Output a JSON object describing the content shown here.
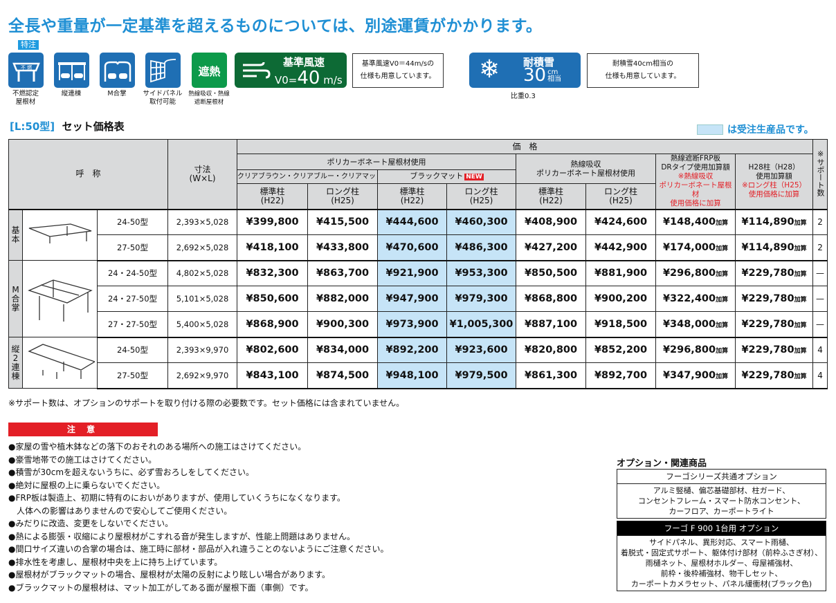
{
  "headline": "全長や重量が一定基準を超えるものについては、別途運賃がかかります。",
  "special_tag": "特注",
  "features": [
    {
      "icon": "nonflammable-roof-icon",
      "label1": "不燃認定",
      "label2": "屋根材",
      "icon_text": "不 燃"
    },
    {
      "icon": "tandem-carport-icon",
      "label1": "縦連棟",
      "label2": ""
    },
    {
      "icon": "m-gassho-icon",
      "label1": "M合掌",
      "label2": ""
    },
    {
      "icon": "side-panel-icon",
      "label1": "サイドパネル",
      "label2": "取付可能"
    },
    {
      "icon": "heat-shield-icon",
      "label1": "熱線吸収・熱線",
      "label2": "遮断屋根材",
      "icon_text": "遮熱"
    }
  ],
  "wind": {
    "title": "基準風速",
    "value": "V0=",
    "number": "40",
    "unit": "m/s"
  },
  "wind_note": [
    "基準風速V0＝44m/sの",
    "仕様も用意しています。"
  ],
  "snow": {
    "title": "耐積雪",
    "number": "30",
    "unit": "cm",
    "unit2": "相当",
    "caption": "比重0.3"
  },
  "snow_note": [
    "耐積雪40cm相当の",
    "仕様も用意しています。"
  ],
  "colors": {
    "accent": "#1f8fd4",
    "blue_badge": "#1f6fb4",
    "green_badge": "#0d6a35",
    "red": "#e31f26",
    "made_to_order": "#c6e4f7"
  },
  "section": {
    "prefix": "[L:50型]",
    "title": "セット価格表"
  },
  "legend": "は受注生産品です。",
  "table": {
    "h_name": "呼　称",
    "h_dim": "寸法\n(W×L)",
    "h_price": "価　格",
    "h_poly": "ポリカーボネート屋根材使用",
    "h_clear": "クリアブラウン・クリアブルー・クリアマット",
    "h_black": "ブラックマット",
    "new": "NEW",
    "h_heat": "熱線吸収\nポリカーボネート屋根材使用",
    "h_frp": "熱線遮断FRP板\nDRタイプ使用加算額",
    "h_frp_red": "※熱線吸収\nポリカーボネート屋根材\n使用価格に加算",
    "h_h28": "H28柱（H28）\n使用加算額",
    "h_h28_red": "※ロング柱（H25）\n使用価格に加算",
    "h_support": "※サポート数",
    "h_std": "標準柱\n(H22)",
    "h_long": "ロング柱\n(H25)",
    "kasan": "加算",
    "groups": [
      {
        "name": "基本",
        "rows": [
          {
            "model": "24-50型",
            "dim": "2,393×5,028",
            "p": [
              "¥399,800",
              "¥415,500",
              "¥444,600",
              "¥460,300",
              "¥408,900",
              "¥424,600",
              "¥148,400",
              "¥114,890"
            ],
            "support": "2"
          },
          {
            "model": "27-50型",
            "dim": "2,692×5,028",
            "p": [
              "¥418,100",
              "¥433,800",
              "¥470,600",
              "¥486,300",
              "¥427,200",
              "¥442,900",
              "¥174,000",
              "¥114,890"
            ],
            "support": "2"
          }
        ]
      },
      {
        "name": "M合掌",
        "rows": [
          {
            "model": "24・24-50型",
            "dim": "4,802×5,028",
            "p": [
              "¥832,300",
              "¥863,700",
              "¥921,900",
              "¥953,300",
              "¥850,500",
              "¥881,900",
              "¥296,800",
              "¥229,780"
            ],
            "support": "—"
          },
          {
            "model": "24・27-50型",
            "dim": "5,101×5,028",
            "p": [
              "¥850,600",
              "¥882,000",
              "¥947,900",
              "¥979,300",
              "¥868,800",
              "¥900,200",
              "¥322,400",
              "¥229,780"
            ],
            "support": "—"
          },
          {
            "model": "27・27-50型",
            "dim": "5,400×5,028",
            "p": [
              "¥868,900",
              "¥900,300",
              "¥973,900",
              "¥1,005,300",
              "¥887,100",
              "¥918,500",
              "¥348,000",
              "¥229,780"
            ],
            "support": "—"
          }
        ]
      },
      {
        "name": "縦2連棟",
        "rows": [
          {
            "model": "24-50型",
            "dim": "2,393×9,970",
            "p": [
              "¥802,600",
              "¥834,000",
              "¥892,200",
              "¥923,600",
              "¥820,800",
              "¥852,200",
              "¥296,800",
              "¥229,780"
            ],
            "support": "4"
          },
          {
            "model": "27-50型",
            "dim": "2,692×9,970",
            "p": [
              "¥843,100",
              "¥874,500",
              "¥948,100",
              "¥979,500",
              "¥861,300",
              "¥892,700",
              "¥347,900",
              "¥229,780"
            ],
            "support": "4"
          }
        ]
      }
    ]
  },
  "footnote": "※サポート数は、オプションのサポートを取り付ける際の必要数です。セット価格には含まれていません。",
  "caution_title": "注 意",
  "cautions": [
    "●家屋の雪や植木鉢などの落下のおそれのある場所への施工はさけてください。",
    "●豪雪地帯での施工はさけてください。",
    "●積雪が30cmを超えないうちに、必ず雪おろしをしてください。",
    "●絶対に屋根の上に乗らないでください。",
    "●FRP板は製造上、初期に特有のにおいがありますが、使用していくうちになくなります。",
    "　人体への影響はありませんので安心してご使用ください。",
    "●みだりに改造、変更をしないでください。",
    "●熱による膨張・収縮により屋根材がこすれる音が発生しますが、性能上問題はありません。",
    "●間口サイズ違いの合掌の場合は、施工時に部材・部品が入れ違うことのないようにご注意ください。",
    "●排水性を考慮し、屋根材中央を上に持ち上げています。",
    "●屋根材がブラックマットの場合、屋根材が太陽の反射により眩しい場合があります。",
    "●ブラックマットの屋根材は、マット加工がしてある面が屋根下面（車側）です。"
  ],
  "options": {
    "title": "オプション・関連商品",
    "common_head": "フーゴシリーズ共通オプション",
    "common_body": [
      "アルミ竪樋、偏芯基礎部材、柱ガード、",
      "コンセントフレーム・スマート防水コンセント、",
      "カーフロア、カーポートライト"
    ],
    "f900_head": "フーゴ F 900 1台用 オプション",
    "f900_body": [
      "サイドパネル、異形対応、スマート雨樋、",
      "着脱式・固定式サポート、躯体付け部材（前枠ふさぎ材）、",
      "雨樋ネット、屋根材ホルダー、母屋補強材、",
      "前枠・後枠補強材、物干しセット、",
      "カーポートカメラセット、パネル緩衝材(ブラック色)"
    ]
  }
}
